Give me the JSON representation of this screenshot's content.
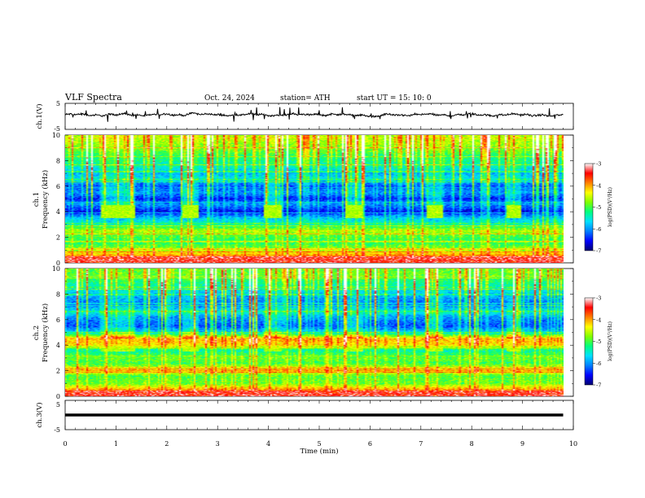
{
  "header": {
    "title": "VLF  Spectra",
    "date": "Oct. 24, 2024",
    "station": "station= ATH",
    "start": "start  UT  =    15: 10: 0"
  },
  "chart_data": [
    {
      "type": "line",
      "panel": "ch1-waveform",
      "ylabel": "ch.1(V)",
      "ylim": [
        -5,
        5
      ],
      "yticks": [
        "5",
        "-5"
      ],
      "xlim": [
        0,
        10
      ],
      "x_extent_min": 9.8,
      "baseline_v": 0.6,
      "color": "#000000",
      "features": [
        {
          "x": 2.5,
          "y": 1.3
        },
        {
          "x": 4.9,
          "y": 1.0
        },
        {
          "x": 6.1,
          "y": -0.4
        },
        {
          "x": 9.6,
          "y": -0.1
        }
      ]
    },
    {
      "type": "heatmap",
      "panel": "ch1-spectrogram",
      "ylabel": "Frequency  (kHz)",
      "channel_label": "ch.1",
      "ylim": [
        0,
        10
      ],
      "yticks": [
        "0",
        "2",
        "4",
        "6",
        "8",
        "10"
      ],
      "xlim": [
        0,
        10
      ],
      "x_extent_min": 9.8,
      "bursts_min": [
        [
          0.7,
          1.35
        ],
        [
          2.3,
          2.6
        ],
        [
          3.9,
          4.25
        ],
        [
          5.5,
          5.85
        ],
        [
          7.1,
          7.4
        ],
        [
          8.65,
          8.95
        ]
      ],
      "burst_band_khz": [
        3.5,
        4.5
      ],
      "band_khz": [
        {
          "f": 0.3,
          "level": -3.6
        },
        {
          "f": 1.1,
          "level": -4.8
        },
        {
          "f": 1.6,
          "level": -5.2
        },
        {
          "f": 2.1,
          "level": -5.0
        },
        {
          "f": 2.5,
          "level": -4.6
        },
        {
          "f": 3.0,
          "level": -5.4
        },
        {
          "f": 3.5,
          "level": -5.8
        },
        {
          "f": 4.0,
          "level": -6.6
        },
        {
          "f": 4.6,
          "level": -6.0
        },
        {
          "f": 5.0,
          "level": -6.5
        },
        {
          "f": 5.5,
          "level": -6.0
        },
        {
          "f": 6.0,
          "level": -6.3
        },
        {
          "f": 6.6,
          "level": -5.6
        },
        {
          "f": 7.0,
          "level": -5.9
        },
        {
          "f": 7.6,
          "level": -5.4
        },
        {
          "f": 8.3,
          "level": -5.2
        },
        {
          "f": 9.0,
          "level": -4.8
        },
        {
          "f": 9.6,
          "level": -4.6
        }
      ]
    },
    {
      "type": "heatmap",
      "panel": "ch2-spectrogram",
      "ylabel": "Frequency  (kHz)",
      "channel_label": "ch.2",
      "ylim": [
        0,
        10
      ],
      "yticks": [
        "0",
        "2",
        "4",
        "6",
        "8",
        "10"
      ],
      "xlim": [
        0,
        10
      ],
      "x_extent_min": 9.8,
      "bursts_min": [
        [
          0.7,
          1.35
        ],
        [
          2.3,
          2.6
        ],
        [
          3.9,
          4.25
        ],
        [
          5.5,
          5.85
        ],
        [
          7.1,
          7.4
        ],
        [
          8.65,
          8.95
        ]
      ],
      "burst_band_khz": [
        3.5,
        4.5
      ],
      "band_khz": [
        {
          "f": 0.3,
          "level": -3.6
        },
        {
          "f": 1.0,
          "level": -4.9
        },
        {
          "f": 1.6,
          "level": -5.0
        },
        {
          "f": 2.0,
          "level": -4.2
        },
        {
          "f": 2.6,
          "level": -5.1
        },
        {
          "f": 3.0,
          "level": -4.9
        },
        {
          "f": 3.6,
          "level": -5.4
        },
        {
          "f": 4.0,
          "level": -4.3
        },
        {
          "f": 4.5,
          "level": -4.1
        },
        {
          "f": 5.0,
          "level": -5.7
        },
        {
          "f": 5.5,
          "level": -6.3
        },
        {
          "f": 6.2,
          "level": -6.0
        },
        {
          "f": 6.6,
          "level": -5.5
        },
        {
          "f": 7.2,
          "level": -6.2
        },
        {
          "f": 8.0,
          "level": -5.8
        },
        {
          "f": 9.0,
          "level": -5.2
        },
        {
          "f": 9.6,
          "level": -4.9
        }
      ]
    },
    {
      "type": "line",
      "panel": "ch3-waveform",
      "ylabel": "ch.3(V)",
      "ylim": [
        -5,
        5
      ],
      "yticks": [
        "5",
        "-5"
      ],
      "xlim": [
        0,
        10
      ],
      "x_extent_min": 9.8,
      "value_v": 0,
      "color": "#000000"
    }
  ],
  "x_axis": {
    "label": "Time  (min)",
    "ticks": [
      "0",
      "1",
      "2",
      "3",
      "4",
      "5",
      "6",
      "7",
      "8",
      "9",
      "10"
    ]
  },
  "colorbar": {
    "label": "log(PSD)(V²/Hz)",
    "range": [
      -7,
      -3
    ],
    "ticks": [
      "-3",
      "-4",
      "-5",
      "-6",
      "-7"
    ],
    "stops": [
      "#000070",
      "#0000ff",
      "#0080ff",
      "#00e0ff",
      "#00ff80",
      "#80ff00",
      "#ffff00",
      "#ff8000",
      "#ff0000",
      "#ffffff"
    ]
  }
}
